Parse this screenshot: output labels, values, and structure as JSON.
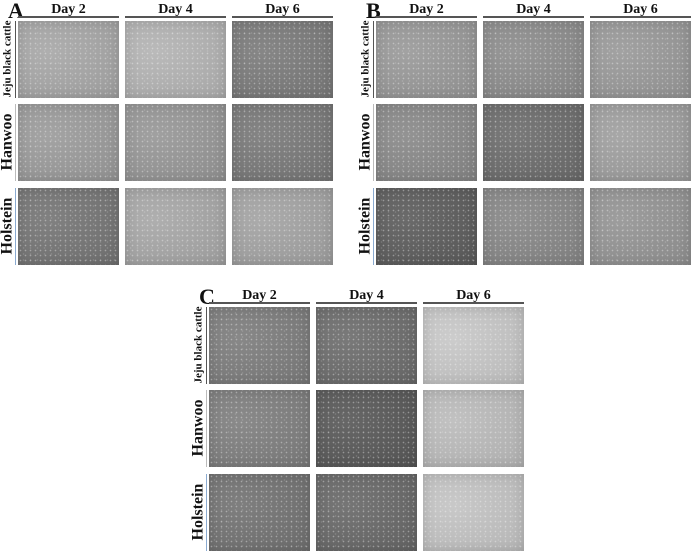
{
  "panels": [
    {
      "label": "A",
      "days": [
        "Day 2",
        "Day 4",
        "Day 6"
      ],
      "rows": [
        {
          "label": "Jeju black cattle",
          "tones": [
            "#a8a8a8",
            "#b4b4b4",
            "#7c7c7c"
          ]
        },
        {
          "label": "Hanwoo",
          "tones": [
            "#9c9c9c",
            "#989898",
            "#7a7a7a"
          ]
        },
        {
          "label": "Holstein",
          "tones": [
            "#767676",
            "#a8a8a8",
            "#a4a4a4"
          ]
        }
      ]
    },
    {
      "label": "B",
      "days": [
        "Day 2",
        "Day 4",
        "Day 6"
      ],
      "rows": [
        {
          "label": "Jeju black cattle",
          "tones": [
            "#9a9a9a",
            "#8e8e8e",
            "#9a9a9a"
          ]
        },
        {
          "label": "Hanwoo",
          "tones": [
            "#8a8a8a",
            "#6e6e6e",
            "#a0a0a0"
          ]
        },
        {
          "label": "Holstein",
          "tones": [
            "#5e5e5e",
            "#888888",
            "#959595"
          ]
        }
      ]
    },
    {
      "label": "C",
      "days": [
        "Day 2",
        "Day 4",
        "Day 6"
      ],
      "rows": [
        {
          "label": "Jeju black cattle",
          "tones": [
            "#7e7e7e",
            "#6e6e6e",
            "#c8c8c8"
          ]
        },
        {
          "label": "Hanwoo",
          "tones": [
            "#808080",
            "#5a5a5a",
            "#bcbcbc"
          ]
        },
        {
          "label": "Holstein",
          "tones": [
            "#747474",
            "#6a6a6a",
            "#c4c4c4"
          ]
        }
      ]
    }
  ]
}
